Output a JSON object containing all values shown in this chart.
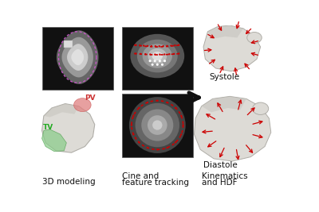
{
  "fig_width": 4.0,
  "fig_height": 2.67,
  "dpi": 100,
  "bg_color": "#ffffff",
  "labels": {
    "col1": "3D modeling",
    "col2_line1": "Cine and",
    "col2_line2": "feature tracking",
    "col3_line1": "Kinematics",
    "col3_line2": "and HDF",
    "systole": "Systole",
    "diastole": "Diastole",
    "tv": "TV",
    "pv": "PV"
  },
  "label_fontsize": 7.5,
  "label_color": "#111111",
  "tv_color": "#22aa22",
  "pv_color": "#cc3333",
  "arrow_color": "#cc0000",
  "panel_bg": "#111111",
  "heart3d_color": "#dddbd6",
  "heart3d_edge": "#b0aea8",
  "heart3d_shadow": "#c8c5be"
}
